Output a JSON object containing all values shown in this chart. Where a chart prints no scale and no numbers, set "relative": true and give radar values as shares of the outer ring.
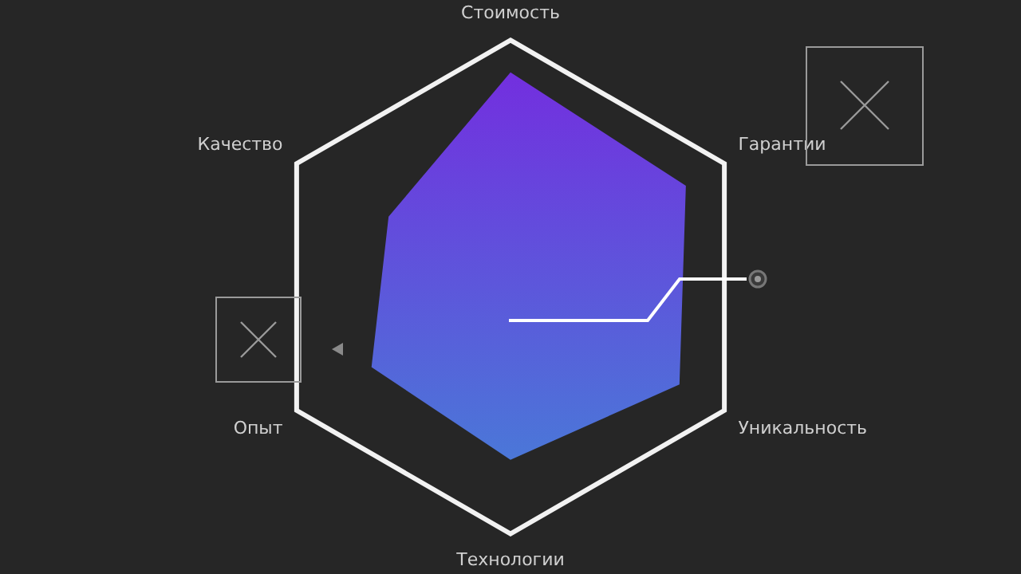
{
  "chart_data": {
    "type": "radar",
    "relative": true,
    "categories": [
      "Стоимость",
      "Гарантии",
      "Уникальность",
      "Технологии",
      "Опыт",
      "Качество"
    ],
    "series": [
      {
        "color": "#6a3fdc",
        "values": [
          0.87,
          0.82,
          0.79,
          0.7,
          0.65,
          0.57
        ]
      }
    ],
    "legend": false
  }
}
